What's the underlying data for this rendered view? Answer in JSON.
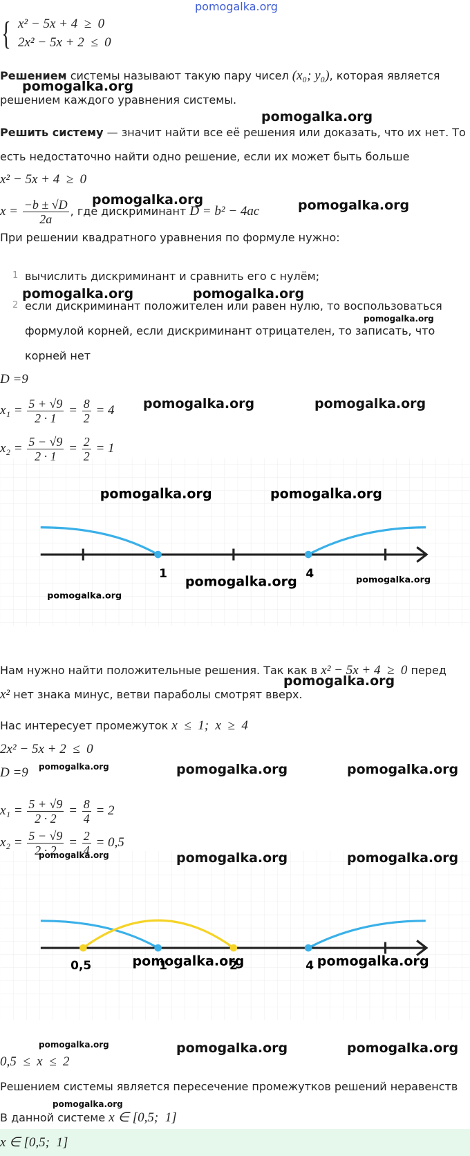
{
  "watermark": "pomogalka.org",
  "system": [
    [
      {
        "m": "x² − 5x + 4  ≥  0"
      }
    ],
    [
      {
        "m": "2x² − 5x + 2  ≤  0"
      }
    ]
  ],
  "definition": [
    [
      {
        "b": "Решением"
      },
      " системы называют такую пару чисел ",
      {
        "m": "(x₀; y₀)"
      },
      ", которая является"
    ],
    [
      "решением каждого уравнения системы."
    ]
  ],
  "solve_def": [
    [
      {
        "b": "Решить систему"
      },
      " — значит найти все её решения или доказать, что их нет. То"
    ],
    [
      "есть недостаточно найти одно решение, если их может быть больше"
    ]
  ],
  "ineq1": [
    {
      "m": "x² − 5x + 4  ≥  0"
    }
  ],
  "formula": [
    {
      "m": "x = "
    },
    {
      "num": "−b ± √D",
      "den": "2a"
    },
    ", где дискриминант ",
    {
      "m": "D = b² − 4ac"
    }
  ],
  "intro": [
    "При решении квадратного уравнения по формуле нужно:"
  ],
  "steps": [
    {
      "n": "1",
      "lines": [
        [
          "вычислить дискриминант и сравнить его с нулём;"
        ]
      ]
    },
    {
      "n": "2",
      "lines": [
        [
          "если дискриминант положителен или равен нулю, то воспользоваться"
        ],
        [
          "формулой корней, если дискриминант отрицателен, то записать, что"
        ],
        [
          "корней нет"
        ]
      ]
    }
  ],
  "d1": [
    {
      "m": "D =9"
    }
  ],
  "x1a": [
    {
      "m": "x₁ = "
    },
    {
      "num": "5 + √9",
      "den": "2 · 1"
    },
    {
      "m": " = "
    },
    {
      "num": "8",
      "den": "2"
    },
    {
      "m": " = 4"
    }
  ],
  "x2a": [
    {
      "m": "x₂ = "
    },
    {
      "num": "5 − √9",
      "den": "2 · 1"
    },
    {
      "m": " = "
    },
    {
      "num": "2",
      "den": "2"
    },
    {
      "m": " = 1"
    }
  ],
  "graph1": {
    "points": [
      "1",
      "4"
    ]
  },
  "branches": [
    [
      "Нам нужно найти положительные решения. Так как в ",
      {
        "m": "x² − 5x + 4  ≥  0"
      },
      " перед"
    ],
    [
      {
        "m": "x²"
      },
      " нет знака минус, ветви параболы смотрят вверх."
    ]
  ],
  "interval1": [
    "Нас интересует промежуток ",
    {
      "m": "x  ≤  1;  x  ≥  4"
    }
  ],
  "ineq2": [
    {
      "m": "2x² − 5x + 2  ≤  0"
    }
  ],
  "d2": [
    {
      "m": "D =9"
    }
  ],
  "x1b": [
    {
      "m": "x₁ = "
    },
    {
      "num": "5 + √9",
      "den": "2 · 2"
    },
    {
      "m": " = "
    },
    {
      "num": "8",
      "den": "4"
    },
    {
      "m": " = 2"
    }
  ],
  "x2b": [
    {
      "m": "x₂ = "
    },
    {
      "num": "5 − √9",
      "den": "2 · 2"
    },
    {
      "m": " = "
    },
    {
      "num": "2",
      "den": "4"
    },
    {
      "m": " = 0,5"
    }
  ],
  "graph2": {
    "points": [
      "0,5",
      "1",
      "2",
      "4"
    ]
  },
  "interval2": [
    {
      "m": "0,5  ≤  x  ≤  2"
    }
  ],
  "conclusion": [
    "Решением системы является пересечение промежутков решений неравенств"
  ],
  "result": [
    "В данной системе ",
    {
      "m": "x ∈ [0,5;  1]"
    }
  ],
  "answer": [
    {
      "m": "x ∈ [0,5;  1]"
    }
  ]
}
